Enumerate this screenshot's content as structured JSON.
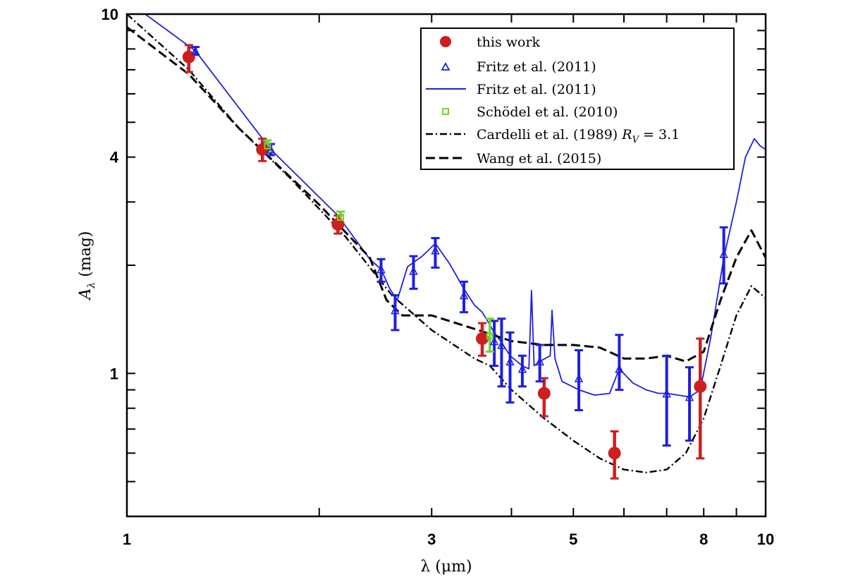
{
  "chart_data": {
    "type": "scatter",
    "xscale": "log",
    "yscale": "log",
    "xlim": [
      1,
      10
    ],
    "ylim": [
      0.4,
      10
    ],
    "xticks": [
      1,
      3,
      5,
      8,
      10
    ],
    "yticks": [
      1,
      4,
      10
    ],
    "xlabel": "λ (μm)",
    "ylabel": "A_λ (mag)",
    "legend_position": "top-right",
    "series": [
      {
        "name": "this work",
        "kind": "markers-errorbars",
        "marker": "filled-circle",
        "color": "#cc1f1f",
        "points": [
          {
            "x": 1.25,
            "y": 7.6,
            "lo": 6.9,
            "hi": 8.2
          },
          {
            "x": 1.63,
            "y": 4.2,
            "lo": 3.9,
            "hi": 4.5
          },
          {
            "x": 2.14,
            "y": 2.6,
            "lo": 2.45,
            "hi": 2.75
          },
          {
            "x": 3.6,
            "y": 1.25,
            "lo": 1.12,
            "hi": 1.38
          },
          {
            "x": 4.5,
            "y": 0.88,
            "lo": 0.76,
            "hi": 0.97
          },
          {
            "x": 5.8,
            "y": 0.6,
            "lo": 0.51,
            "hi": 0.69
          },
          {
            "x": 7.9,
            "y": 0.92,
            "lo": 0.58,
            "hi": 1.25
          }
        ]
      },
      {
        "name": "Fritz et al. (2011)",
        "kind": "markers-errorbars",
        "marker": "open-triangle",
        "color": "#1f1fe0",
        "points": [
          {
            "x": 1.28,
            "y": 7.9,
            "lo": 7.7,
            "hi": 8.1
          },
          {
            "x": 1.68,
            "y": 4.2,
            "lo": 4.05,
            "hi": 4.35
          },
          {
            "x": 2.5,
            "y": 1.95,
            "lo": 1.8,
            "hi": 2.08
          },
          {
            "x": 2.63,
            "y": 1.5,
            "lo": 1.32,
            "hi": 1.65
          },
          {
            "x": 2.81,
            "y": 1.93,
            "lo": 1.72,
            "hi": 2.12
          },
          {
            "x": 3.04,
            "y": 2.2,
            "lo": 1.97,
            "hi": 2.38
          },
          {
            "x": 3.37,
            "y": 1.65,
            "lo": 1.48,
            "hi": 1.8
          },
          {
            "x": 3.76,
            "y": 1.23,
            "lo": 1.05,
            "hi": 1.4
          },
          {
            "x": 3.86,
            "y": 1.2,
            "lo": 0.92,
            "hi": 1.42
          },
          {
            "x": 3.98,
            "y": 1.08,
            "lo": 0.83,
            "hi": 1.3
          },
          {
            "x": 4.16,
            "y": 1.03,
            "lo": 0.92,
            "hi": 1.12
          },
          {
            "x": 4.43,
            "y": 1.08,
            "lo": 0.95,
            "hi": 1.2
          },
          {
            "x": 5.1,
            "y": 0.97,
            "lo": 0.79,
            "hi": 1.16
          },
          {
            "x": 5.9,
            "y": 1.03,
            "lo": 0.9,
            "hi": 1.28
          },
          {
            "x": 7.0,
            "y": 0.88,
            "lo": 0.63,
            "hi": 1.12
          },
          {
            "x": 7.6,
            "y": 0.86,
            "lo": 0.65,
            "hi": 1.04
          },
          {
            "x": 8.6,
            "y": 2.15,
            "lo": 1.78,
            "hi": 2.55
          }
        ]
      },
      {
        "name": "Fritz et al. (2011)",
        "kind": "line",
        "style": "solid",
        "color": "#1f1fe0",
        "points": [
          [
            1.06,
            10.1
          ],
          [
            1.28,
            7.9
          ],
          [
            1.68,
            4.2
          ],
          [
            2.14,
            2.75
          ],
          [
            2.4,
            2.08
          ],
          [
            2.5,
            1.95
          ],
          [
            2.58,
            1.72
          ],
          [
            2.65,
            1.6
          ],
          [
            2.75,
            1.98
          ],
          [
            2.9,
            2.12
          ],
          [
            3.04,
            2.3
          ],
          [
            3.2,
            2.02
          ],
          [
            3.37,
            1.72
          ],
          [
            3.5,
            1.55
          ],
          [
            3.6,
            1.48
          ],
          [
            3.76,
            1.3
          ],
          [
            3.86,
            1.22
          ],
          [
            3.98,
            1.12
          ],
          [
            4.16,
            1.05
          ],
          [
            4.26,
            1.03
          ],
          [
            4.3,
            1.7
          ],
          [
            4.34,
            1.05
          ],
          [
            4.43,
            1.08
          ],
          [
            4.6,
            1.12
          ],
          [
            4.63,
            1.5
          ],
          [
            4.68,
            1.1
          ],
          [
            4.8,
            0.95
          ],
          [
            5.1,
            0.9
          ],
          [
            5.4,
            0.87
          ],
          [
            5.7,
            0.88
          ],
          [
            5.9,
            1.03
          ],
          [
            6.2,
            0.94
          ],
          [
            6.5,
            0.9
          ],
          [
            6.8,
            0.88
          ],
          [
            7.0,
            0.88
          ],
          [
            7.3,
            0.87
          ],
          [
            7.6,
            0.86
          ],
          [
            7.9,
            0.9
          ],
          [
            8.2,
            1.25
          ],
          [
            8.6,
            2.1
          ],
          [
            9.0,
            3.0
          ],
          [
            9.3,
            4.0
          ],
          [
            9.6,
            4.5
          ],
          [
            9.8,
            4.3
          ],
          [
            10.0,
            4.2
          ]
        ]
      },
      {
        "name": "Schödel et al. (2010)",
        "kind": "markers-errorbars",
        "marker": "open-square",
        "color": "#6fd62a",
        "points": [
          {
            "x": 1.66,
            "y": 4.3,
            "lo": 4.15,
            "hi": 4.45
          },
          {
            "x": 2.16,
            "y": 2.72,
            "lo": 2.62,
            "hi": 2.82
          },
          {
            "x": 3.7,
            "y": 1.27,
            "lo": 1.15,
            "hi": 1.42
          }
        ]
      },
      {
        "name": "Cardelli et al. (1989) R_V = 3.1",
        "kind": "line",
        "style": "dash-dot",
        "color": "#000000",
        "points": [
          [
            1.0,
            10.0
          ],
          [
            1.25,
            7.0
          ],
          [
            1.5,
            4.8
          ],
          [
            1.8,
            3.5
          ],
          [
            2.2,
            2.4
          ],
          [
            2.6,
            1.65
          ],
          [
            3.0,
            1.32
          ],
          [
            3.5,
            1.1
          ],
          [
            3.7,
            1.05
          ],
          [
            4.0,
            0.9
          ],
          [
            4.5,
            0.75
          ],
          [
            5.0,
            0.65
          ],
          [
            5.5,
            0.58
          ],
          [
            6.0,
            0.54
          ],
          [
            6.5,
            0.53
          ],
          [
            7.0,
            0.54
          ],
          [
            7.5,
            0.6
          ],
          [
            8.0,
            0.75
          ],
          [
            8.5,
            1.05
          ],
          [
            9.0,
            1.45
          ],
          [
            9.5,
            1.75
          ],
          [
            10.0,
            1.62
          ]
        ]
      },
      {
        "name": "Wang et al. (2015)",
        "kind": "line",
        "style": "dashed",
        "color": "#000000",
        "points": [
          [
            1.0,
            9.2
          ],
          [
            1.25,
            6.8
          ],
          [
            1.5,
            4.8
          ],
          [
            2.0,
            2.95
          ],
          [
            2.4,
            2.1
          ],
          [
            2.55,
            1.6
          ],
          [
            2.7,
            1.45
          ],
          [
            3.0,
            1.45
          ],
          [
            3.5,
            1.33
          ],
          [
            4.0,
            1.23
          ],
          [
            4.5,
            1.2
          ],
          [
            5.0,
            1.2
          ],
          [
            5.5,
            1.18
          ],
          [
            6.0,
            1.1
          ],
          [
            6.5,
            1.1
          ],
          [
            7.0,
            1.12
          ],
          [
            7.5,
            1.08
          ],
          [
            8.0,
            1.15
          ],
          [
            8.5,
            1.6
          ],
          [
            9.0,
            2.1
          ],
          [
            9.5,
            2.5
          ],
          [
            10.0,
            2.1
          ]
        ]
      }
    ]
  },
  "legend": {
    "items": [
      {
        "label": "this work"
      },
      {
        "label": "Fritz et al. (2011)"
      },
      {
        "label": "Fritz et al. (2011)"
      },
      {
        "label": "Schödel et al. (2010)"
      },
      {
        "label": "Cardelli et al. (1989)",
        "math": "R",
        "math_sub": "V",
        "math_tail": " = 3.1"
      },
      {
        "label": "Wang et al. (2015)"
      }
    ]
  }
}
